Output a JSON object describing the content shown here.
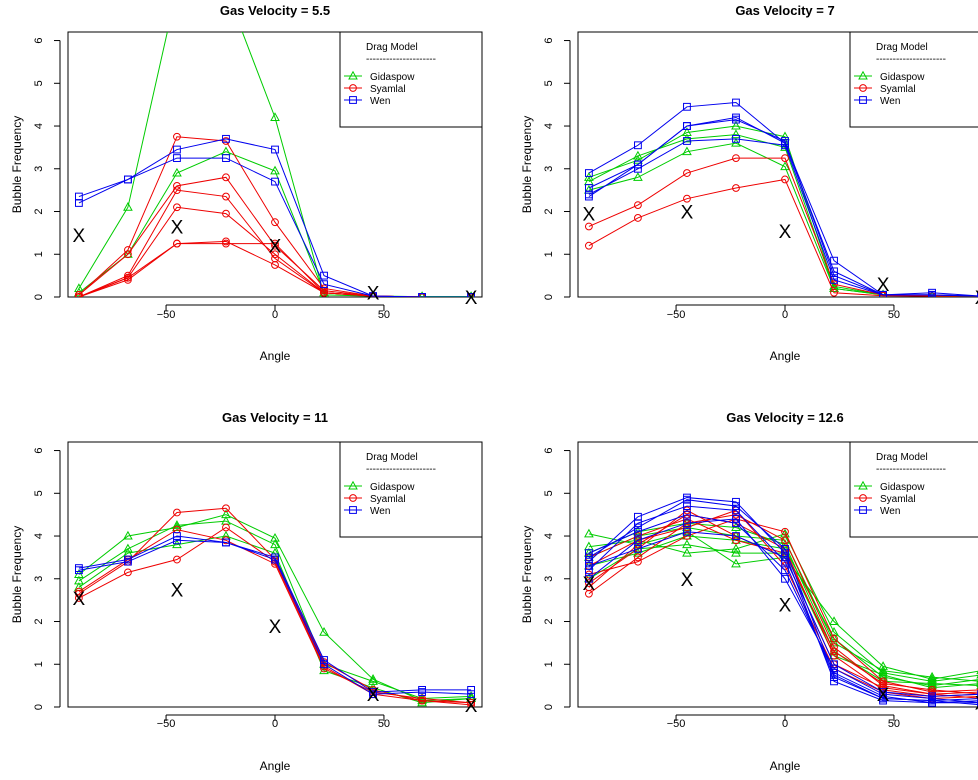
{
  "ylabel": "Bubble Frequency",
  "xlabel": "Angle",
  "legend": {
    "title": "Drag Model",
    "separator": "---------------------",
    "entries": [
      {
        "name": "Gidaspow",
        "color": "#00cc00",
        "marker": "triangle"
      },
      {
        "name": "Syamlal",
        "color": "#ee0000",
        "marker": "circle"
      },
      {
        "name": "Wen",
        "color": "#0000ee",
        "marker": "square"
      }
    ]
  },
  "chart_data": [
    {
      "type": "line",
      "title": "Gas Velocity = 5.5",
      "xlabel": "Angle",
      "ylabel": "Bubble Frequency",
      "x": [
        -90,
        -67.5,
        -45,
        -22.5,
        0,
        22.5,
        45,
        67.5,
        90
      ],
      "xlim": [
        -95,
        95
      ],
      "ylim": [
        0,
        6.2
      ],
      "xticks": [
        -50,
        0,
        50
      ],
      "xticklabels": [
        "−50",
        "0",
        "50"
      ],
      "yticks": [
        0,
        1,
        2,
        3,
        4,
        5,
        6
      ],
      "legend_position": "top-right",
      "series": [
        {
          "model": "Gidaspow",
          "values": [
            0.2,
            2.1,
            7.2,
            7.2,
            4.2,
            0.05,
            0.02,
            0.01,
            0.01
          ]
        },
        {
          "model": "Gidaspow",
          "values": [
            0.1,
            1.0,
            2.9,
            3.4,
            2.95,
            0.1,
            0.02,
            0.01,
            0.01
          ]
        },
        {
          "model": "Syamlal",
          "values": [
            0.05,
            1.1,
            3.75,
            3.65,
            1.75,
            0.2,
            0.02,
            0.0,
            0.0
          ]
        },
        {
          "model": "Syamlal",
          "values": [
            0.05,
            1.0,
            2.6,
            2.8,
            1.2,
            0.15,
            0.02,
            0.0,
            0.0
          ]
        },
        {
          "model": "Syamlal",
          "values": [
            0.0,
            0.5,
            2.5,
            2.35,
            0.9,
            0.1,
            0.02,
            0.0,
            0.0
          ]
        },
        {
          "model": "Syamlal",
          "values": [
            0.0,
            0.45,
            2.1,
            1.95,
            1.0,
            0.1,
            0.02,
            0.0,
            0.0
          ]
        },
        {
          "model": "Syamlal",
          "values": [
            0.0,
            0.45,
            1.25,
            1.3,
            0.75,
            0.1,
            0.02,
            0.0,
            0.0
          ]
        },
        {
          "model": "Syamlal",
          "values": [
            0.0,
            0.4,
            1.25,
            1.25,
            1.25,
            0.1,
            0.02,
            0.0,
            0.0
          ]
        },
        {
          "model": "Wen",
          "values": [
            2.35,
            2.75,
            3.45,
            3.7,
            3.45,
            0.5,
            0.02,
            0.0,
            0.0
          ]
        },
        {
          "model": "Wen",
          "values": [
            2.2,
            2.75,
            3.25,
            3.25,
            2.7,
            0.3,
            0.02,
            0.0,
            0.0
          ]
        }
      ],
      "experimental": {
        "label": "X",
        "points": [
          [
            -90,
            1.45
          ],
          [
            -45,
            1.65
          ],
          [
            0,
            1.2
          ],
          [
            45,
            0.1
          ],
          [
            90,
            0.0
          ]
        ]
      }
    },
    {
      "type": "line",
      "title": "Gas Velocity = 7",
      "xlabel": "Angle",
      "ylabel": "Bubble Frequency",
      "x": [
        -90,
        -67.5,
        -45,
        -22.5,
        0,
        22.5,
        45,
        67.5,
        90
      ],
      "xlim": [
        -95,
        95
      ],
      "ylim": [
        0,
        6.2
      ],
      "xticks": [
        -50,
        0,
        50
      ],
      "xticklabels": [
        "−50",
        "0",
        "50"
      ],
      "yticks": [
        0,
        1,
        2,
        3,
        4,
        5,
        6
      ],
      "legend_position": "top-right",
      "series": [
        {
          "model": "Gidaspow",
          "values": [
            2.8,
            3.2,
            3.85,
            4.0,
            3.75,
            0.25,
            0.05,
            0.02,
            0.02
          ]
        },
        {
          "model": "Gidaspow",
          "values": [
            2.7,
            3.3,
            3.7,
            3.8,
            3.5,
            0.2,
            0.05,
            0.02,
            0.02
          ]
        },
        {
          "model": "Gidaspow",
          "values": [
            2.5,
            2.8,
            3.4,
            3.6,
            3.05,
            0.2,
            0.05,
            0.02,
            0.02
          ]
        },
        {
          "model": "Syamlal",
          "values": [
            1.65,
            2.15,
            2.9,
            3.25,
            3.25,
            0.3,
            0.05,
            0.02,
            0.02
          ]
        },
        {
          "model": "Syamlal",
          "values": [
            1.2,
            1.85,
            2.3,
            2.55,
            2.75,
            0.1,
            0.03,
            0.02,
            0.02
          ]
        },
        {
          "model": "Wen",
          "values": [
            2.9,
            3.55,
            4.45,
            4.55,
            3.6,
            0.85,
            0.05,
            0.1,
            0.02
          ]
        },
        {
          "model": "Wen",
          "values": [
            2.55,
            3.1,
            4.0,
            4.2,
            3.6,
            0.6,
            0.05,
            0.05,
            0.02
          ]
        },
        {
          "model": "Wen",
          "values": [
            2.4,
            3.0,
            3.65,
            3.7,
            3.55,
            0.4,
            0.05,
            0.05,
            0.02
          ]
        },
        {
          "model": "Wen",
          "values": [
            2.35,
            3.1,
            4.0,
            4.15,
            3.65,
            0.5,
            0.05,
            0.05,
            0.02
          ]
        }
      ],
      "experimental": {
        "label": "X",
        "points": [
          [
            -90,
            1.95
          ],
          [
            -45,
            2.0
          ],
          [
            0,
            1.55
          ],
          [
            45,
            0.3
          ],
          [
            90,
            0.0
          ]
        ]
      }
    },
    {
      "type": "line",
      "title": "Gas Velocity = 11",
      "xlabel": "Angle",
      "ylabel": "Bubble Frequency",
      "x": [
        -90,
        -67.5,
        -45,
        -22.5,
        0,
        22.5,
        45,
        67.5,
        90
      ],
      "xlim": [
        -95,
        95
      ],
      "ylim": [
        0,
        6.2
      ],
      "xticks": [
        -50,
        0,
        50
      ],
      "xticklabels": [
        "−50",
        "0",
        "50"
      ],
      "yticks": [
        0,
        1,
        2,
        3,
        4,
        5,
        6
      ],
      "legend_position": "top-right",
      "series": [
        {
          "model": "Gidaspow",
          "values": [
            3.1,
            4.0,
            4.2,
            4.5,
            3.95,
            1.75,
            0.65,
            0.15,
            0.2
          ]
        },
        {
          "model": "Gidaspow",
          "values": [
            2.95,
            3.7,
            4.25,
            4.35,
            3.8,
            1.0,
            0.6,
            0.2,
            0.25
          ]
        },
        {
          "model": "Gidaspow",
          "values": [
            2.8,
            3.6,
            3.8,
            4.0,
            3.6,
            0.85,
            0.45,
            0.1,
            0.2
          ]
        },
        {
          "model": "Syamlal",
          "values": [
            2.65,
            3.4,
            4.55,
            4.65,
            3.45,
            1.05,
            0.4,
            0.15,
            0.1
          ]
        },
        {
          "model": "Syamlal",
          "values": [
            2.55,
            3.15,
            3.45,
            4.2,
            3.4,
            0.95,
            0.3,
            0.15,
            0.05
          ]
        },
        {
          "model": "Syamlal",
          "values": [
            2.7,
            3.45,
            4.15,
            3.9,
            3.35,
            0.9,
            0.35,
            0.2,
            0.1
          ]
        },
        {
          "model": "Wen",
          "values": [
            3.25,
            3.45,
            4.0,
            3.85,
            3.5,
            1.1,
            0.35,
            0.4,
            0.4
          ]
        },
        {
          "model": "Wen",
          "values": [
            3.2,
            3.4,
            3.9,
            3.85,
            3.45,
            1.0,
            0.3,
            0.35,
            0.3
          ]
        }
      ],
      "experimental": {
        "label": "X",
        "points": [
          [
            -90,
            2.55
          ],
          [
            -45,
            2.75
          ],
          [
            0,
            1.9
          ],
          [
            45,
            0.3
          ],
          [
            90,
            0.05
          ]
        ]
      }
    },
    {
      "type": "line",
      "title": "Gas Velocity = 12.6",
      "xlabel": "Angle",
      "ylabel": "Bubble Frequency",
      "x": [
        -90,
        -67.5,
        -45,
        -22.5,
        0,
        22.5,
        45,
        67.5,
        90
      ],
      "xlim": [
        -95,
        95
      ],
      "ylim": [
        0,
        6.2
      ],
      "xticks": [
        -50,
        0,
        50
      ],
      "xticklabels": [
        "−50",
        "0",
        "50"
      ],
      "yticks": [
        0,
        1,
        2,
        3,
        4,
        5,
        6
      ],
      "legend_position": "top-right",
      "series": [
        {
          "model": "Gidaspow",
          "values": [
            4.05,
            3.8,
            4.1,
            3.35,
            3.5,
            2.0,
            0.95,
            0.65,
            0.85
          ]
        },
        {
          "model": "Gidaspow",
          "values": [
            3.75,
            3.9,
            3.6,
            3.7,
            4.05,
            1.75,
            0.8,
            0.6,
            0.75
          ]
        },
        {
          "model": "Gidaspow",
          "values": [
            3.5,
            4.0,
            4.2,
            4.0,
            3.9,
            1.5,
            0.85,
            0.7,
            0.6
          ]
        },
        {
          "model": "Gidaspow",
          "values": [
            3.3,
            3.6,
            4.0,
            3.9,
            3.7,
            1.6,
            0.7,
            0.5,
            0.65
          ]
        },
        {
          "model": "Gidaspow",
          "values": [
            3.6,
            4.1,
            4.3,
            4.2,
            3.8,
            1.3,
            0.6,
            0.55,
            0.5
          ]
        },
        {
          "model": "Gidaspow",
          "values": [
            3.0,
            3.7,
            3.8,
            3.6,
            3.6,
            1.2,
            0.75,
            0.45,
            0.55
          ]
        },
        {
          "model": "Syamlal",
          "values": [
            2.65,
            3.5,
            4.3,
            4.5,
            3.9,
            1.4,
            0.5,
            0.3,
            0.35
          ]
        },
        {
          "model": "Syamlal",
          "values": [
            2.8,
            3.8,
            4.5,
            4.3,
            3.7,
            1.2,
            0.4,
            0.25,
            0.3
          ]
        },
        {
          "model": "Syamlal",
          "values": [
            3.1,
            3.4,
            4.0,
            4.4,
            4.1,
            1.6,
            0.6,
            0.35,
            0.4
          ]
        },
        {
          "model": "Syamlal",
          "values": [
            2.9,
            3.7,
            4.6,
            4.0,
            3.5,
            1.0,
            0.45,
            0.3,
            0.2
          ]
        },
        {
          "model": "Syamlal",
          "values": [
            3.3,
            3.9,
            4.2,
            4.6,
            3.3,
            0.9,
            0.35,
            0.2,
            0.25
          ]
        },
        {
          "model": "Syamlal",
          "values": [
            3.5,
            4.0,
            4.4,
            3.9,
            3.6,
            1.3,
            0.55,
            0.4,
            0.3
          ]
        },
        {
          "model": "Wen",
          "values": [
            3.4,
            4.45,
            4.9,
            4.8,
            3.6,
            0.6,
            0.15,
            0.1,
            0.1
          ]
        },
        {
          "model": "Wen",
          "values": [
            3.2,
            4.3,
            4.7,
            4.6,
            3.4,
            0.7,
            0.2,
            0.15,
            0.2
          ]
        },
        {
          "model": "Wen",
          "values": [
            3.6,
            4.1,
            4.5,
            4.3,
            3.2,
            0.8,
            0.25,
            0.1,
            0.15
          ]
        },
        {
          "model": "Wen",
          "values": [
            3.0,
            3.9,
            4.3,
            4.4,
            3.0,
            0.9,
            0.3,
            0.2,
            0.1
          ]
        },
        {
          "model": "Wen",
          "values": [
            3.3,
            3.7,
            4.1,
            4.0,
            3.5,
            1.0,
            0.35,
            0.25,
            0.3
          ]
        },
        {
          "model": "Wen",
          "values": [
            3.5,
            4.2,
            4.85,
            4.7,
            3.7,
            0.75,
            0.2,
            0.15,
            0.05
          ]
        }
      ],
      "experimental": {
        "label": "X",
        "points": [
          [
            -90,
            2.9
          ],
          [
            -45,
            3.0
          ],
          [
            0,
            2.4
          ],
          [
            45,
            0.3
          ],
          [
            90,
            0.1
          ]
        ]
      }
    }
  ]
}
